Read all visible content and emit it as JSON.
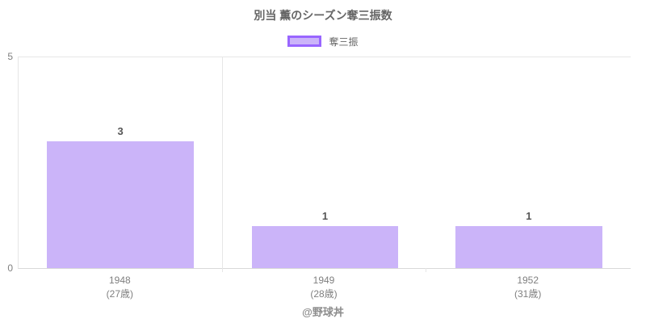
{
  "title": "別当 薫のシーズン奪三振数",
  "legend": {
    "label": "奪三振"
  },
  "footer": "@野球丼",
  "colors": {
    "bar_fill": "#cbb4f9",
    "accent_border": "#9966ff",
    "grid": "#e6e6e6",
    "baseline": "#d9d9d9",
    "text": "#666666",
    "tick": "#7f7f7f"
  },
  "chart_data": {
    "type": "bar",
    "title": "別当 薫のシーズン奪三振数",
    "categories": [
      "1948",
      "1949",
      "1952"
    ],
    "category_sublabels": [
      "(27歳)",
      "(28歳)",
      "(31歳)"
    ],
    "series": [
      {
        "name": "奪三振",
        "values": [
          3,
          1,
          1
        ]
      }
    ],
    "values": [
      3,
      1,
      1
    ],
    "xlabel": "",
    "ylabel": "",
    "ylim": [
      0,
      5
    ],
    "yticks": [
      0,
      5
    ],
    "grid": "category-separators-and-top-border-only",
    "legend_position": "top",
    "value_labels": true
  }
}
